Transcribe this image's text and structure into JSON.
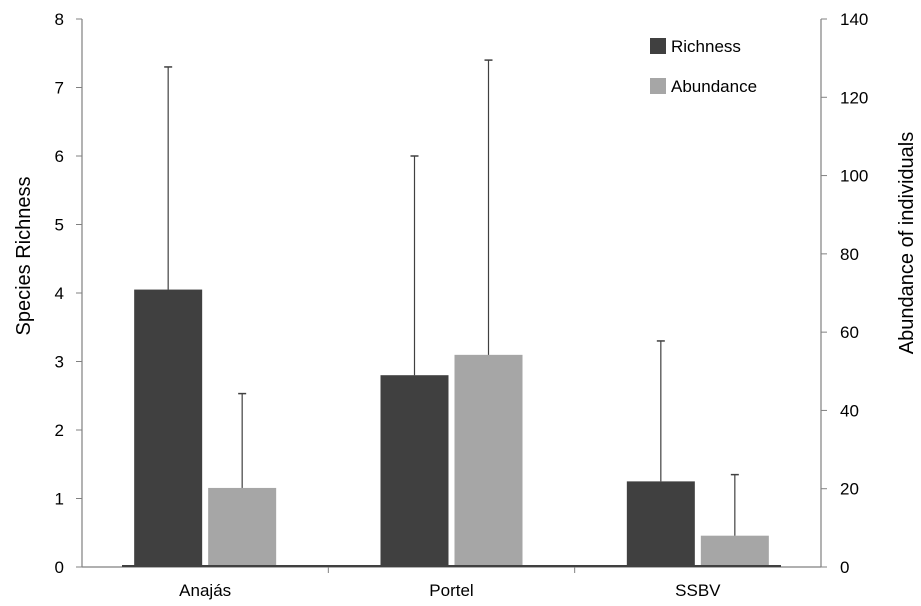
{
  "chart_data": {
    "type": "bar",
    "categories": [
      "Anajás",
      "Portel",
      "SSBV"
    ],
    "series": [
      {
        "name": "Richness",
        "axis": "left",
        "color": "#404040",
        "values": [
          4.05,
          2.8,
          1.25
        ],
        "error_upper": [
          7.3,
          6.0,
          3.3
        ]
      },
      {
        "name": "Abundance",
        "axis": "right",
        "color": "#a6a6a6",
        "values": [
          20.2,
          54.2,
          8.0
        ],
        "error_upper": [
          44.3,
          129.5,
          23.6
        ]
      }
    ],
    "ylabel_left": "Species Richness",
    "ylabel_right": "Abundance of individuals",
    "ylim_left": [
      0,
      8
    ],
    "ylim_right": [
      0,
      140
    ],
    "yticks_left": [
      "0",
      "1",
      "2",
      "3",
      "4",
      "5",
      "6",
      "7",
      "8"
    ],
    "yticks_right": [
      "0",
      "20",
      "40",
      "60",
      "80",
      "100",
      "120",
      "140"
    ],
    "legend_position": "top-right",
    "grid": false
  }
}
